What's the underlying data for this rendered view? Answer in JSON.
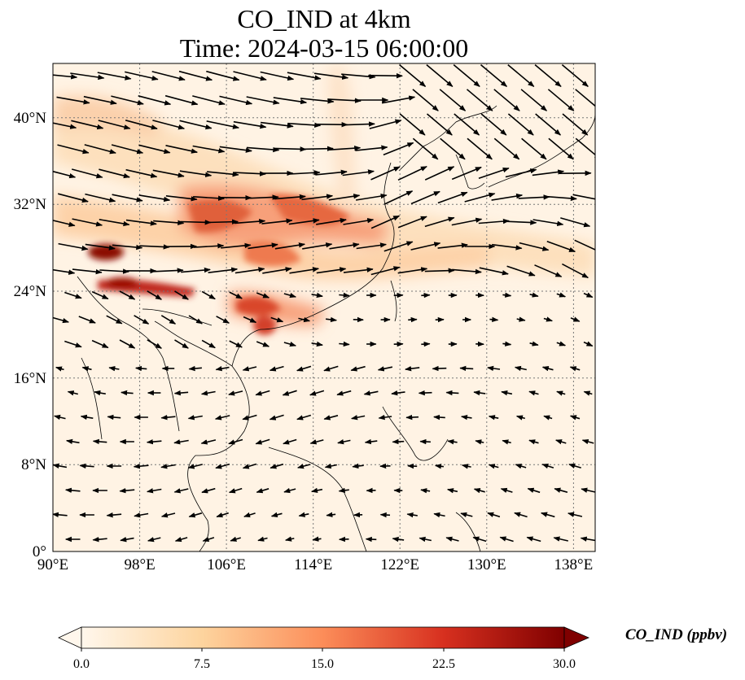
{
  "title": {
    "line1": "CO_IND at 4km",
    "line2": "Time: 2024-03-15 06:00:00"
  },
  "map": {
    "lon_range": [
      90,
      140
    ],
    "lat_range": [
      0,
      45
    ],
    "lon_ticks": [
      "90°E",
      "98°E",
      "106°E",
      "114°E",
      "122°E",
      "130°E",
      "138°E"
    ],
    "lat_ticks": [
      "0°",
      "8°N",
      "16°N",
      "24°N",
      "32°N",
      "40°N"
    ],
    "gridlines": true,
    "colormap": "OrRd",
    "colors": {
      "low": "#fff7ec",
      "mid_low": "#fdd49e",
      "mid": "#fc8d59",
      "high": "#d7301f",
      "max": "#7f0000",
      "coastline": "#000000",
      "vector": "#000000"
    }
  },
  "colorbar": {
    "title": "CO_IND (ppbv)",
    "ticks": [
      "0.0",
      "7.5",
      "15.0",
      "22.5",
      "30.0"
    ],
    "range": [
      0,
      30
    ],
    "extend": "both"
  }
}
